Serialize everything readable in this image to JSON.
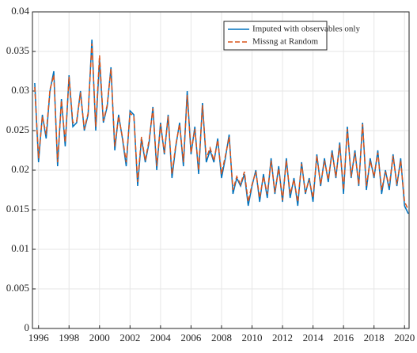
{
  "chart_data": {
    "type": "line",
    "x": [
      1995.75,
      1996,
      1996.25,
      1996.5,
      1996.75,
      1997,
      1997.25,
      1997.5,
      1997.75,
      1998,
      1998.25,
      1998.5,
      1998.75,
      1999,
      1999.25,
      1999.5,
      1999.75,
      2000,
      2000.25,
      2000.5,
      2000.75,
      2001,
      2001.25,
      2001.5,
      2001.75,
      2002,
      2002.25,
      2002.5,
      2002.75,
      2003,
      2003.25,
      2003.5,
      2003.75,
      2004,
      2004.25,
      2004.5,
      2004.75,
      2005,
      2005.25,
      2005.5,
      2005.75,
      2006,
      2006.25,
      2006.5,
      2006.75,
      2007,
      2007.25,
      2007.5,
      2007.75,
      2008,
      2008.25,
      2008.5,
      2008.75,
      2009,
      2009.25,
      2009.5,
      2009.75,
      2010,
      2010.25,
      2010.5,
      2010.75,
      2011,
      2011.25,
      2011.5,
      2011.75,
      2012,
      2012.25,
      2012.5,
      2012.75,
      2013,
      2013.25,
      2013.5,
      2013.75,
      2014,
      2014.25,
      2014.5,
      2014.75,
      2015,
      2015.25,
      2015.5,
      2015.75,
      2016,
      2016.25,
      2016.5,
      2016.75,
      2017,
      2017.25,
      2017.5,
      2017.75,
      2018,
      2018.25,
      2018.5,
      2018.75,
      2019,
      2019.25,
      2019.5,
      2019.75,
      2020,
      2020.25
    ],
    "series": [
      {
        "name": "Imputed with observables only",
        "color": "#0072BD",
        "values": [
          0.031,
          0.021,
          0.027,
          0.024,
          0.03,
          0.0325,
          0.0205,
          0.029,
          0.023,
          0.032,
          0.0255,
          0.026,
          0.03,
          0.025,
          0.027,
          0.0365,
          0.025,
          0.034,
          0.026,
          0.028,
          0.033,
          0.0225,
          0.027,
          0.024,
          0.0205,
          0.0275,
          0.027,
          0.018,
          0.024,
          0.021,
          0.0235,
          0.028,
          0.02,
          0.026,
          0.022,
          0.027,
          0.019,
          0.023,
          0.026,
          0.0205,
          0.03,
          0.022,
          0.0255,
          0.0195,
          0.0285,
          0.021,
          0.0225,
          0.021,
          0.024,
          0.019,
          0.0215,
          0.0245,
          0.017,
          0.019,
          0.018,
          0.0195,
          0.0155,
          0.018,
          0.02,
          0.016,
          0.0195,
          0.0165,
          0.0215,
          0.017,
          0.0205,
          0.016,
          0.0215,
          0.0165,
          0.019,
          0.0155,
          0.021,
          0.017,
          0.019,
          0.016,
          0.022,
          0.018,
          0.0215,
          0.0185,
          0.0225,
          0.019,
          0.0235,
          0.017,
          0.0255,
          0.019,
          0.0225,
          0.018,
          0.026,
          0.0175,
          0.0215,
          0.019,
          0.0225,
          0.017,
          0.02,
          0.0175,
          0.022,
          0.018,
          0.0215,
          0.0155,
          0.0145
        ]
      },
      {
        "name": "Missng at Random",
        "color": "#D95319",
        "dashed": true,
        "values": [
          0.0305,
          0.0215,
          0.0268,
          0.0245,
          0.0302,
          0.032,
          0.021,
          0.0288,
          0.0235,
          0.0318,
          0.026,
          0.0262,
          0.0298,
          0.0252,
          0.0272,
          0.036,
          0.0255,
          0.0345,
          0.0262,
          0.0282,
          0.0328,
          0.023,
          0.0268,
          0.0242,
          0.021,
          0.0272,
          0.0268,
          0.0185,
          0.0242,
          0.0212,
          0.0238,
          0.0278,
          0.0205,
          0.0258,
          0.0222,
          0.0268,
          0.0195,
          0.0232,
          0.0258,
          0.021,
          0.0295,
          0.0222,
          0.0252,
          0.02,
          0.0282,
          0.0215,
          0.0228,
          0.0212,
          0.0238,
          0.0195,
          0.0218,
          0.0242,
          0.0175,
          0.0192,
          0.0182,
          0.0198,
          0.016,
          0.0182,
          0.0198,
          0.0165,
          0.0192,
          0.017,
          0.0212,
          0.0172,
          0.0202,
          0.0162,
          0.0212,
          0.017,
          0.0188,
          0.016,
          0.0208,
          0.0172,
          0.0188,
          0.0165,
          0.0218,
          0.0182,
          0.0212,
          0.0188,
          0.0222,
          0.0192,
          0.0232,
          0.0175,
          0.0252,
          0.0192,
          0.0222,
          0.0182,
          0.0258,
          0.018,
          0.0212,
          0.0192,
          0.0222,
          0.0175,
          0.0198,
          0.018,
          0.0218,
          0.0182,
          0.0212,
          0.016,
          0.015
        ]
      }
    ],
    "xlim": [
      1995.6,
      2020.3
    ],
    "ylim": [
      0,
      0.04
    ],
    "xticks": [
      1996,
      1998,
      2000,
      2002,
      2004,
      2006,
      2008,
      2010,
      2012,
      2014,
      2016,
      2018,
      2020
    ],
    "yticks": [
      0,
      0.005,
      0.01,
      0.015,
      0.02,
      0.025,
      0.03,
      0.035,
      0.04
    ],
    "grid": true,
    "legend": "top-right"
  }
}
